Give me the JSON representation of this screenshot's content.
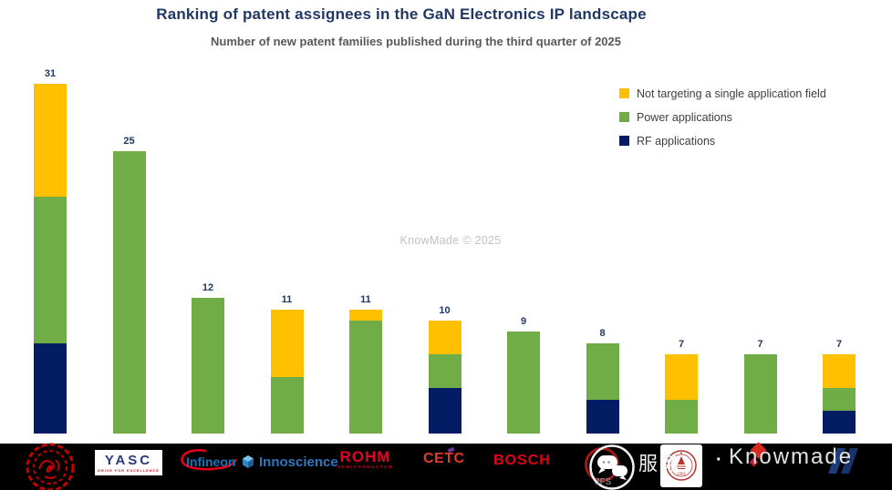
{
  "header": {
    "title": "Ranking of patent assignees in the GaN Electronics IP landscape",
    "subtitle": "Number of new patent families published during the third quarter of 2025"
  },
  "center_watermark": "KnowMade © 2025",
  "chart_data": {
    "type": "bar",
    "stacked": true,
    "title": "Ranking of patent assignees in the GaN Electronics IP landscape",
    "subtitle": "Number of new patent families published during the third quarter of 2025",
    "xlabel": "",
    "ylabel": "",
    "ylim": [
      0,
      33
    ],
    "grid": false,
    "axes_visible": false,
    "legend_position": "top-right",
    "legend": [
      {
        "label": "Not targeting a single application field",
        "color": "#FFC000"
      },
      {
        "label": "Power applications",
        "color": "#70AD47"
      },
      {
        "label": "RF applications",
        "color": "#041C63"
      }
    ],
    "categories": [
      "Red seal university logo",
      "YASC",
      "Infineon",
      "Innoscience",
      "ROHM",
      "CETC",
      "BOSCH",
      "Red circle logo (behind watermark icon)",
      "University seal logo (1901)",
      "Red diamond logo",
      "Blue logo"
    ],
    "series": [
      {
        "name": "Not targeting a single application field",
        "color": "#FFC000",
        "values": [
          10,
          0,
          0,
          6,
          1,
          3,
          0,
          0,
          4,
          0,
          3
        ]
      },
      {
        "name": "Power applications",
        "color": "#70AD47",
        "values": [
          13,
          25,
          12,
          5,
          10,
          3,
          9,
          5,
          3,
          7,
          2
        ]
      },
      {
        "name": "RF applications",
        "color": "#041C63",
        "values": [
          8,
          0,
          0,
          0,
          0,
          4,
          0,
          3,
          0,
          0,
          2
        ]
      }
    ],
    "totals": [
      31,
      25,
      12,
      11,
      11,
      10,
      9,
      8,
      7,
      7,
      7
    ]
  },
  "logos": [
    {
      "kind": "seal-red"
    },
    {
      "kind": "yasc",
      "text": "YASC",
      "tagline": "DRIVE FOR EXCELLENCE"
    },
    {
      "kind": "infineon",
      "text": "Infineon"
    },
    {
      "kind": "innoscience",
      "text": "Innoscience"
    },
    {
      "kind": "rohm",
      "text": "ROHM",
      "tagline": "SEMICONDUCTOR"
    },
    {
      "kind": "cetc",
      "text": "CETC"
    },
    {
      "kind": "bosch",
      "text": "BOSCH"
    },
    {
      "kind": "circle-red"
    },
    {
      "kind": "univ-seal",
      "year": "1901"
    },
    {
      "kind": "diamond-red"
    },
    {
      "kind": "blue-mark"
    }
  ],
  "watermark_overlay": {
    "icon": "chat-bubbles-icon",
    "jfs": "JFS",
    "cn_text": "服务",
    "separator": "·",
    "brand": "Knowmade"
  },
  "colors": {
    "title": "#1F3864",
    "subtitle": "#595959",
    "value_label": "#1F3864",
    "band": "#000000",
    "center_watermark": "#C2C2C2"
  }
}
